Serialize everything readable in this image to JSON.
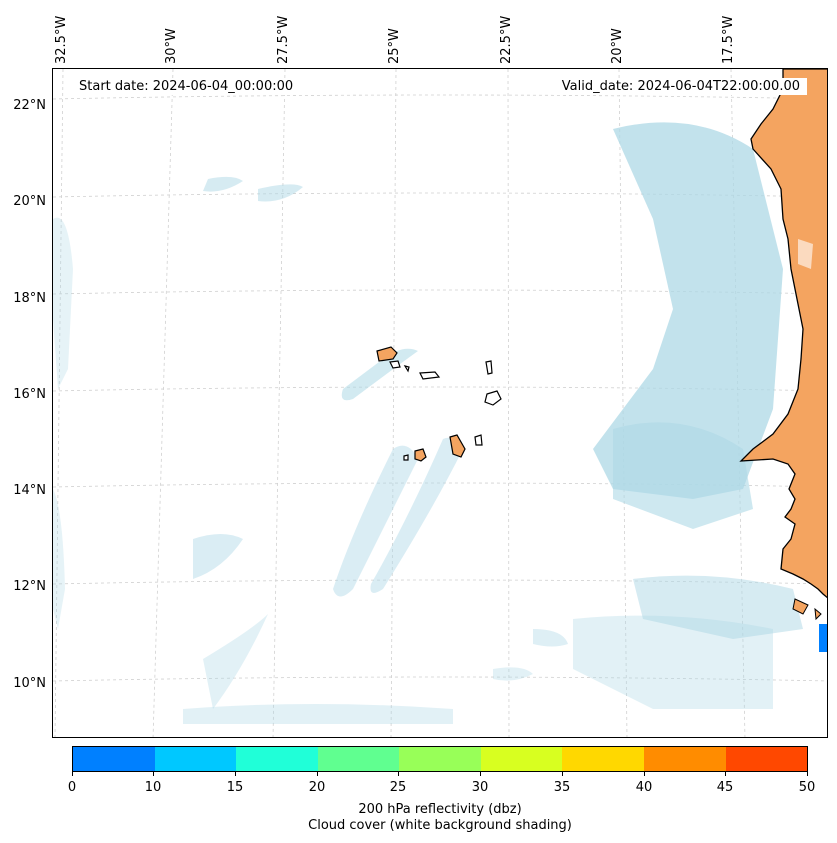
{
  "map": {
    "start_date": "Start date: 2024-06-04_00:00:00",
    "valid_date": "Valid_date: 2024-06-04T22:00:00.00",
    "lon_labels": [
      "32.5°W",
      "30°W",
      "27.5°W",
      "25°W",
      "22.5°W",
      "20°W",
      "17.5°W"
    ],
    "lat_labels": [
      "22°N",
      "20°N",
      "18°N",
      "16°N",
      "14°N",
      "12°N",
      "10°N"
    ],
    "colors": {
      "land": "#f4a460",
      "cloud": "#add8e6",
      "coastline": "#000000",
      "gridline": "#cccccc"
    }
  },
  "colorbar": {
    "label_line1": "200 hPa reflectivity (dbz)",
    "label_line2": "Cloud cover (white background shading)",
    "ticks": [
      "0",
      "10",
      "15",
      "20",
      "25",
      "30",
      "35",
      "40",
      "45",
      "50"
    ],
    "colors": [
      "#0080ff",
      "#00c8ff",
      "#20ffd8",
      "#60ff90",
      "#98ff58",
      "#d8ff20",
      "#ffd800",
      "#ff8c00",
      "#ff4800"
    ]
  }
}
